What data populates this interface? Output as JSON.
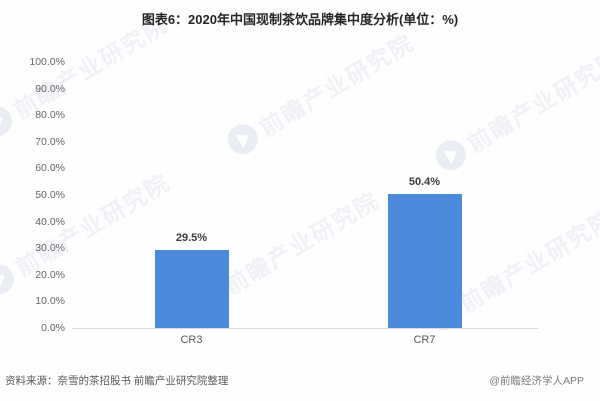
{
  "header": {
    "title": "图表6：2020年中国现制茶饮品牌集中度分析(单位：%)"
  },
  "footer": {
    "source": "资料来源：奈雪的茶招股书 前瞻产业研究院整理",
    "credit": "@前瞻经济学人APP"
  },
  "watermark": {
    "text": "前瞻产业研究院",
    "icon": "qianzhan-logo-icon"
  },
  "colors": {
    "bar": "#4a89dc",
    "axis_line": "#d9d9d9",
    "tick_label": "#666666",
    "title_text": "#262626",
    "data_label": "#3a3a3a",
    "source_text": "#595959",
    "credit_text": "#7a7a7a",
    "watermark": "#eff1f6"
  },
  "chart_data": {
    "type": "bar",
    "title": "图表6：2020年中国现制茶饮品牌集中度分析(单位：%)",
    "categories": [
      "CR3",
      "CR7"
    ],
    "values": [
      29.5,
      50.4
    ],
    "value_labels": [
      "29.5%",
      "50.4%"
    ],
    "xlabel": "",
    "ylabel": "",
    "ylim": [
      0,
      100
    ],
    "ytick_interval": 10,
    "ytick_labels": [
      "0.0%",
      "10.0%",
      "20.0%",
      "30.0%",
      "40.0%",
      "50.0%",
      "60.0%",
      "70.0%",
      "80.0%",
      "90.0%",
      "100.0%"
    ],
    "grid": false,
    "legend_position": "none",
    "bar_color": "#4a89dc"
  }
}
